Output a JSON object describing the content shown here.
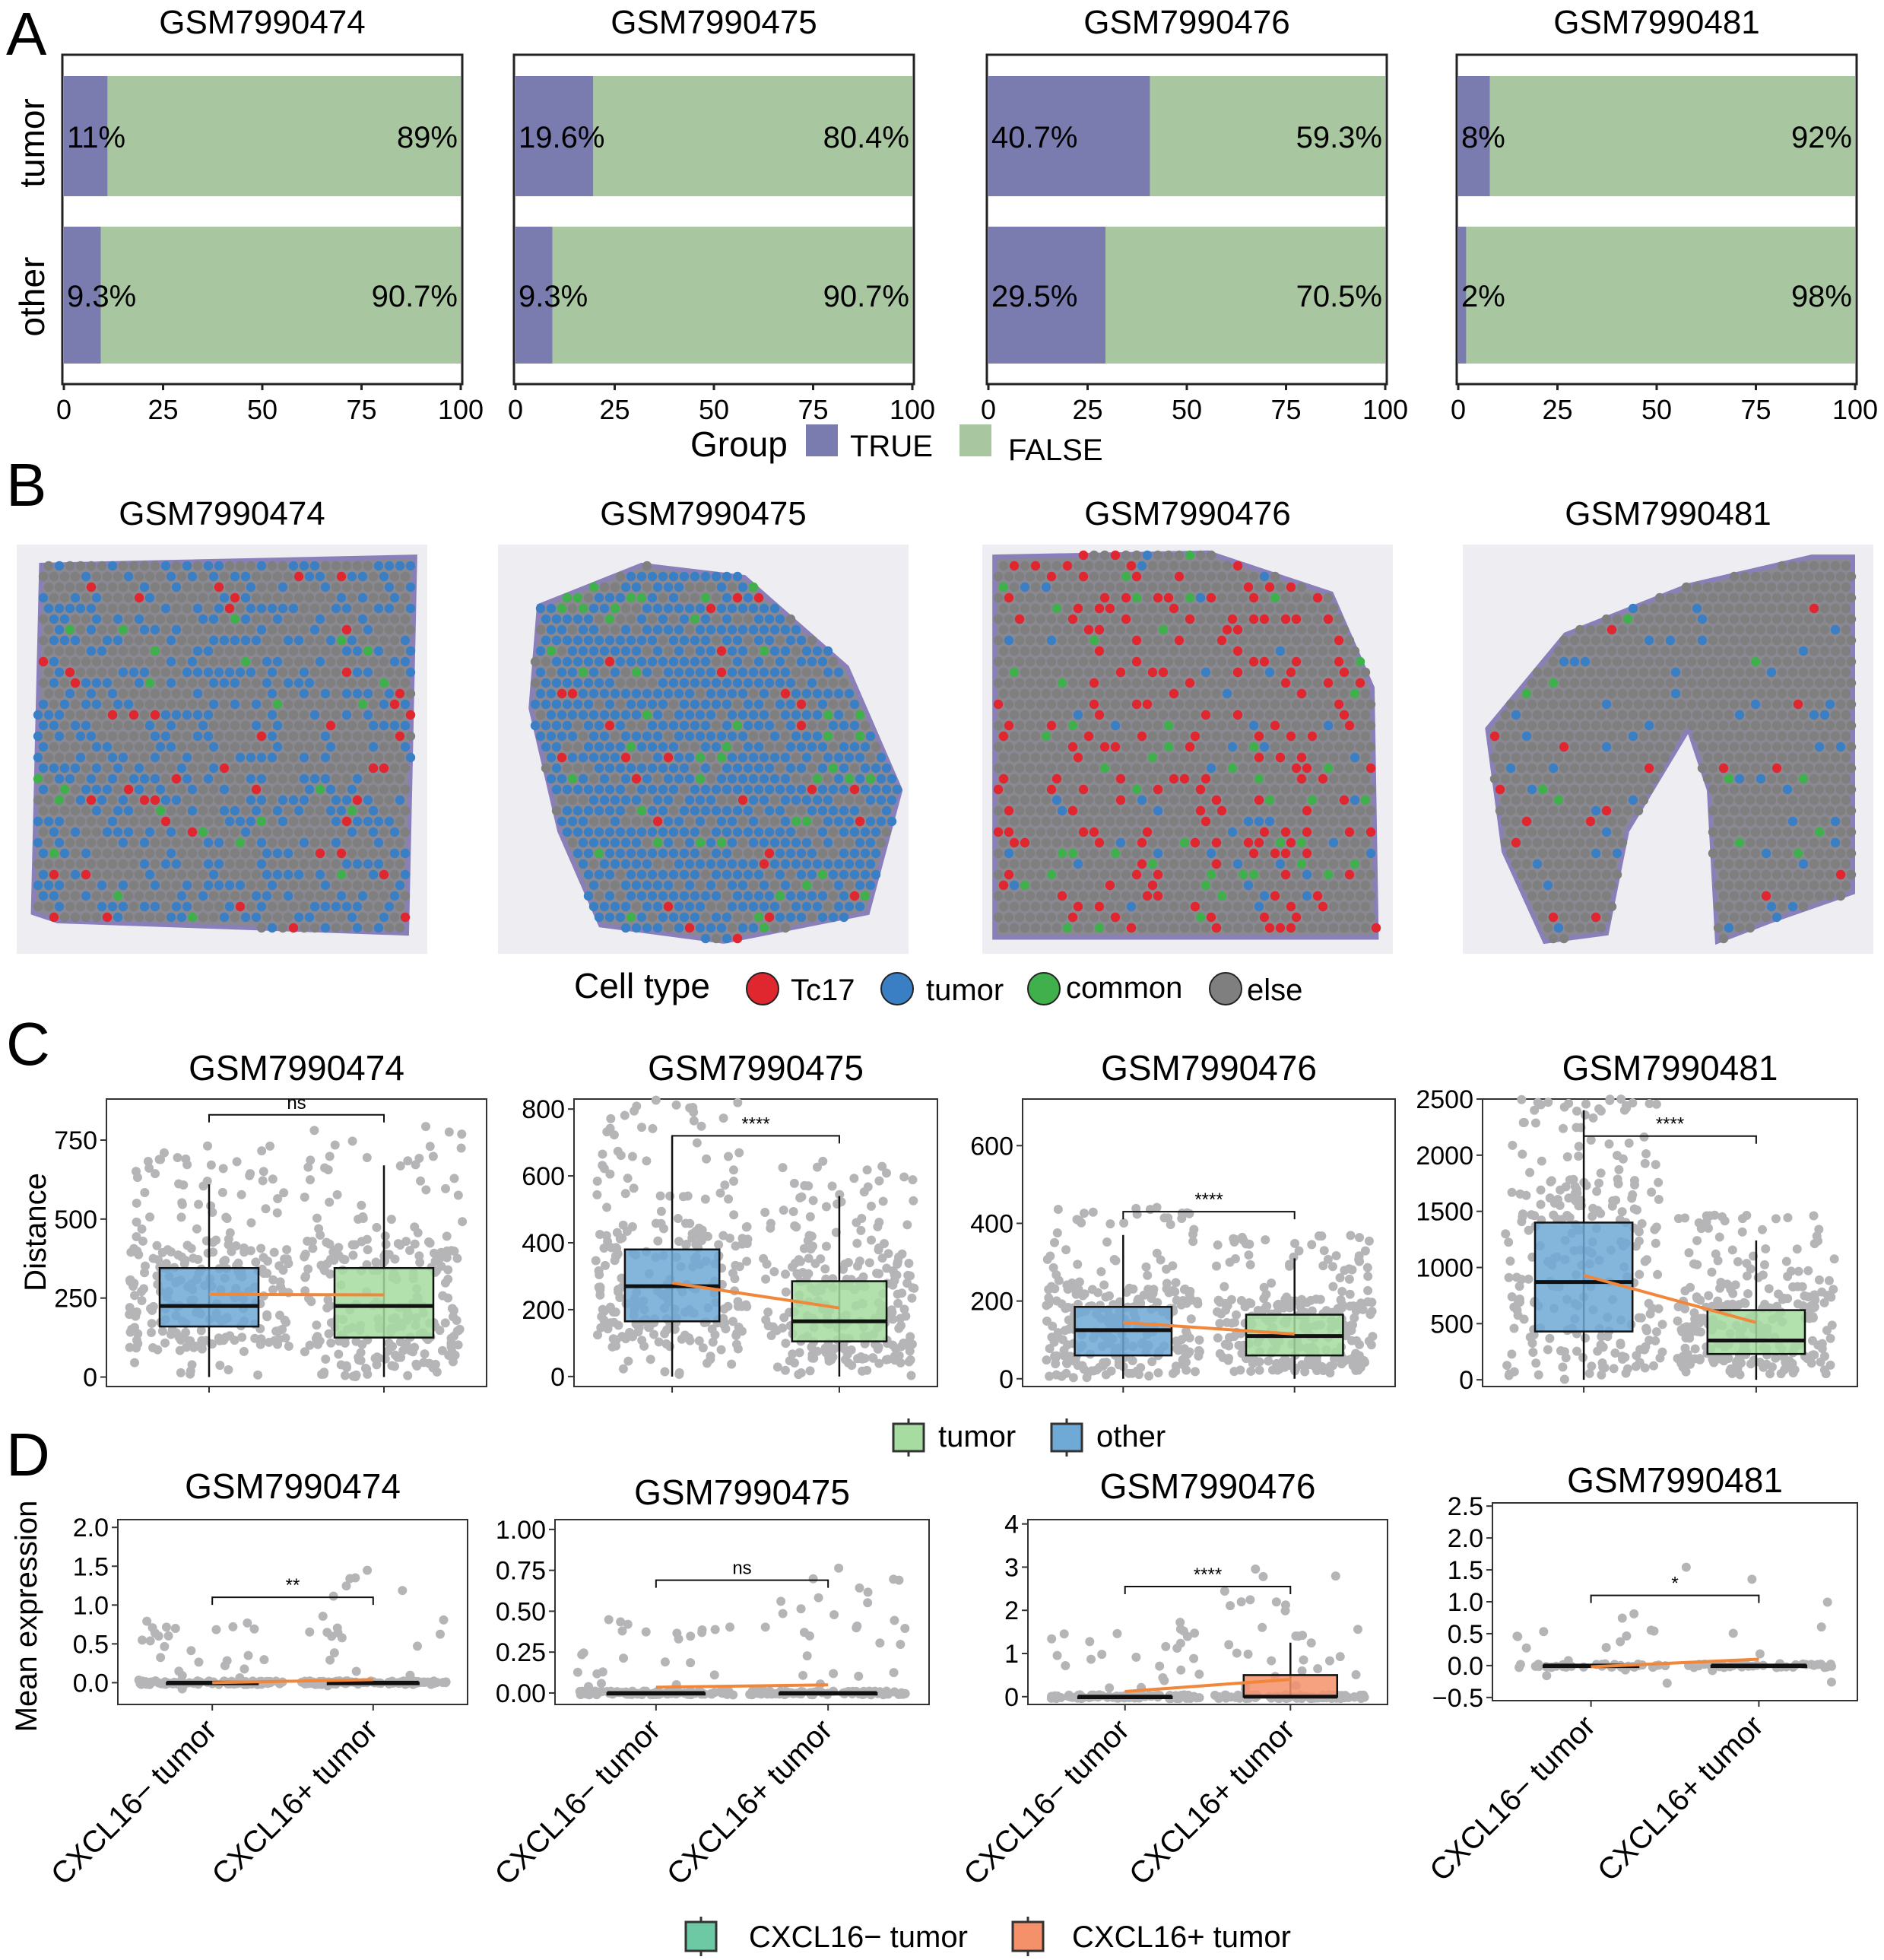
{
  "panels": {
    "a": "A",
    "b": "B",
    "c": "C",
    "d": "D"
  },
  "samples": [
    "GSM7990474",
    "GSM7990475",
    "GSM7990476",
    "GSM7990481"
  ],
  "colors": {
    "true_bar": "#7a7cb0",
    "false_bar": "#a8c7a0",
    "box_other": "#6fa9d6",
    "box_tumor": "#a6dca0",
    "box_cxcl16_neg": "#6cc9a4",
    "box_cxcl16_pos": "#f4906a",
    "points": "#b5b5b8",
    "mean_line": "#f0873a",
    "tc17": "#e0262e",
    "tumor_spot": "#3a7fc4",
    "common": "#3fb04b",
    "else": "#7f7f7f"
  },
  "chart_data": [
    {
      "type": "bar",
      "panel": "A",
      "orientation": "horizontal",
      "stacked": true,
      "categories": [
        "tumor",
        "other"
      ],
      "xlim": [
        0,
        100
      ],
      "xticks": [
        "0",
        "25",
        "50",
        "75",
        "100"
      ],
      "legend_title": "Group",
      "legend": [
        "TRUE",
        "FALSE"
      ],
      "facets": [
        {
          "title": "GSM7990474",
          "values": [
            [
              11,
              89
            ],
            [
              9.3,
              90.7
            ]
          ],
          "labels": [
            [
              "11%",
              "89%"
            ],
            [
              "9.3%",
              "90.7%"
            ]
          ]
        },
        {
          "title": "GSM7990475",
          "values": [
            [
              19.6,
              80.4
            ],
            [
              9.3,
              90.7
            ]
          ],
          "labels": [
            [
              "19.6%",
              "80.4%"
            ],
            [
              "9.3%",
              "90.7%"
            ]
          ]
        },
        {
          "title": "GSM7990476",
          "values": [
            [
              40.7,
              59.3
            ],
            [
              29.5,
              70.5
            ]
          ],
          "labels": [
            [
              "40.7%",
              "59.3%"
            ],
            [
              "29.5%",
              "70.5%"
            ]
          ]
        },
        {
          "title": "GSM7990481",
          "values": [
            [
              8,
              92
            ],
            [
              2,
              98
            ]
          ],
          "labels": [
            [
              "8%",
              "92%"
            ],
            [
              "2%",
              "98%"
            ]
          ]
        }
      ]
    },
    {
      "type": "spatial",
      "panel": "B",
      "legend_title": "Cell type",
      "legend": [
        "Tc17",
        "tumor",
        "common",
        "else"
      ],
      "facets": [
        "GSM7990474",
        "GSM7990475",
        "GSM7990476",
        "GSM7990481"
      ]
    },
    {
      "type": "box",
      "panel": "C",
      "ylabel": "Distance",
      "legend": [
        "tumor",
        "other"
      ],
      "facets": [
        {
          "title": "GSM7990474",
          "ylim": [
            -30,
            880
          ],
          "yticks": [
            0,
            250,
            500,
            750
          ],
          "sig": "ns",
          "sig_y": 830,
          "boxes": [
            {
              "group": "other",
              "q1": 160,
              "median": 225,
              "q3": 345,
              "wlo": 0,
              "whi": 610,
              "mean": 262
            },
            {
              "group": "tumor",
              "q1": 125,
              "median": 225,
              "q3": 345,
              "wlo": 0,
              "whi": 670,
              "mean": 260
            }
          ]
        },
        {
          "title": "GSM7990475",
          "ylim": [
            -30,
            830
          ],
          "yticks": [
            0,
            200,
            400,
            600,
            800
          ],
          "sig": "****",
          "sig_y": 720,
          "boxes": [
            {
              "group": "other",
              "q1": 165,
              "median": 270,
              "q3": 380,
              "wlo": 0,
              "whi": 720,
              "mean": 280
            },
            {
              "group": "tumor",
              "q1": 105,
              "median": 165,
              "q3": 285,
              "wlo": 0,
              "whi": 540,
              "mean": 205
            }
          ]
        },
        {
          "title": "GSM7990476",
          "ylim": [
            -20,
            720
          ],
          "yticks": [
            0,
            200,
            400,
            600
          ],
          "sig": "****",
          "sig_y": 430,
          "boxes": [
            {
              "group": "other",
              "q1": 60,
              "median": 125,
              "q3": 185,
              "wlo": 0,
              "whi": 370,
              "mean": 145
            },
            {
              "group": "tumor",
              "q1": 60,
              "median": 110,
              "q3": 165,
              "wlo": 0,
              "whi": 310,
              "mean": 115
            }
          ]
        },
        {
          "title": "GSM7990481",
          "ylim": [
            -60,
            2500
          ],
          "yticks": [
            0,
            500,
            1000,
            1500,
            2000,
            2500
          ],
          "sig": "****",
          "sig_y": 2170,
          "boxes": [
            {
              "group": "other",
              "q1": 430,
              "median": 870,
              "q3": 1400,
              "wlo": 0,
              "whi": 2400,
              "mean": 930
            },
            {
              "group": "tumor",
              "q1": 230,
              "median": 350,
              "q3": 620,
              "wlo": 0,
              "whi": 1240,
              "mean": 510
            }
          ]
        }
      ]
    },
    {
      "type": "box",
      "panel": "D",
      "ylabel": "Mean expression",
      "categories": [
        "CXCL16− tumor",
        "CXCL16+ tumor"
      ],
      "legend": [
        "CXCL16− tumor",
        "CXCL16+ tumor"
      ],
      "facets": [
        {
          "title": "GSM7990474",
          "ylim": [
            -0.28,
            2.1
          ],
          "yticks": [
            "0.0",
            "0.5",
            "1.0",
            "1.5",
            "2.0"
          ],
          "sig": "**",
          "sig_y": 1.1,
          "boxes": [
            {
              "q1": 0,
              "median": 0,
              "q3": 0,
              "wlo": 0,
              "whi": 0,
              "mean": 0.0
            },
            {
              "q1": 0,
              "median": 0,
              "q3": 0,
              "wlo": 0,
              "whi": 0,
              "mean": 0.04
            }
          ]
        },
        {
          "title": "GSM7990475",
          "ylim": [
            -0.07,
            1.06
          ],
          "yticks": [
            "0.00",
            "0.25",
            "0.50",
            "0.75",
            "1.00"
          ],
          "sig": "ns",
          "sig_y": 0.69,
          "boxes": [
            {
              "q1": 0,
              "median": 0,
              "q3": 0,
              "wlo": 0,
              "whi": 0,
              "mean": 0.035
            },
            {
              "q1": 0,
              "median": 0,
              "q3": 0,
              "wlo": 0,
              "whi": 0,
              "mean": 0.05
            }
          ]
        },
        {
          "title": "GSM7990476",
          "ylim": [
            -0.18,
            4.1
          ],
          "yticks": [
            "0",
            "1",
            "2",
            "3",
            "4"
          ],
          "sig": "****",
          "sig_y": 2.55,
          "boxes": [
            {
              "q1": 0,
              "median": 0,
              "q3": 0,
              "wlo": 0,
              "whi": 0,
              "mean": 0.12
            },
            {
              "q1": 0,
              "median": 0,
              "q3": 0.5,
              "wlo": 0,
              "whi": 1.25,
              "mean": 0.4
            }
          ]
        },
        {
          "title": "GSM7990481",
          "ylim": [
            -0.55,
            2.55
          ],
          "yticks": [
            "−0.5",
            "0.0",
            "0.5",
            "1.0",
            "1.5",
            "2.0",
            "2.5"
          ],
          "sig": "*",
          "sig_y": 1.1,
          "boxes": [
            {
              "q1": 0,
              "median": 0,
              "q3": 0,
              "wlo": 0,
              "whi": 0,
              "mean": -0.02
            },
            {
              "q1": 0,
              "median": 0,
              "q3": 0,
              "wlo": 0,
              "whi": 0,
              "mean": 0.1
            }
          ]
        }
      ]
    }
  ]
}
